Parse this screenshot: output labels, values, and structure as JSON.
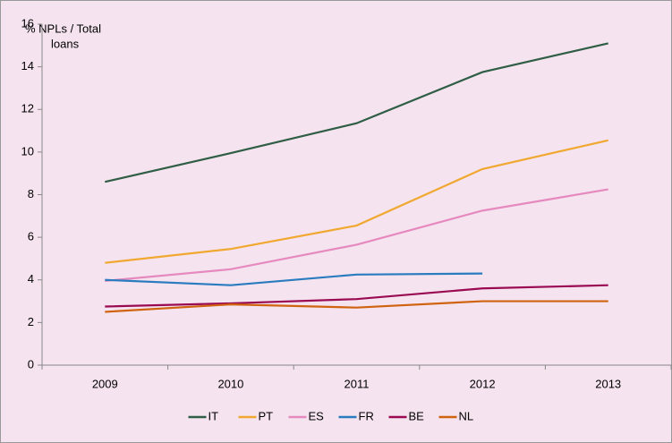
{
  "chart_data": {
    "type": "line",
    "annotation": [
      "% NPLs / Total",
      "loans"
    ],
    "categories": [
      "2009",
      "2010",
      "2011",
      "2012",
      "2013"
    ],
    "series": [
      {
        "name": "IT",
        "color": "#2f5d46",
        "values": [
          8.6,
          9.95,
          11.35,
          13.75,
          15.1
        ]
      },
      {
        "name": "PT",
        "color": "#f0a830",
        "values": [
          4.8,
          5.45,
          6.55,
          9.2,
          10.55
        ]
      },
      {
        "name": "ES",
        "color": "#e689bf",
        "values": [
          3.95,
          4.5,
          5.65,
          7.25,
          8.25
        ]
      },
      {
        "name": "FR",
        "color": "#2b7bbf",
        "values": [
          4.0,
          3.75,
          4.25,
          4.3,
          null
        ]
      },
      {
        "name": "BE",
        "color": "#9a0a52",
        "values": [
          2.75,
          2.9,
          3.1,
          3.6,
          3.75
        ]
      },
      {
        "name": "NL",
        "color": "#d0630f",
        "values": [
          2.5,
          2.85,
          2.7,
          3.0,
          3.0
        ]
      }
    ],
    "ylim": [
      0,
      16
    ],
    "yticks": [
      0,
      2,
      4,
      6,
      8,
      10,
      12,
      14,
      16
    ],
    "grid": false,
    "legend": "bottom"
  }
}
